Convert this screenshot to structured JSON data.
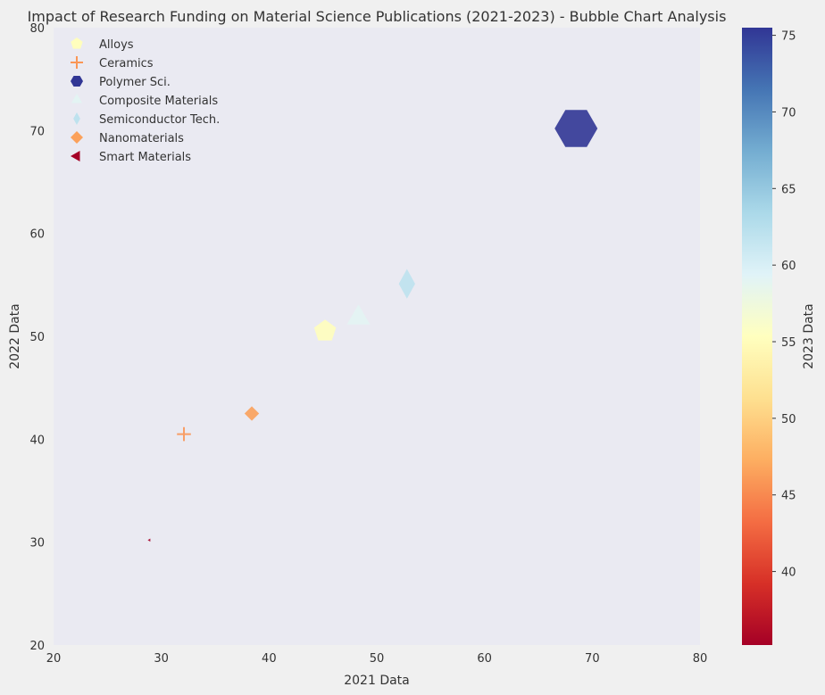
{
  "chart_data": {
    "type": "scatter",
    "title": "Impact of Research Funding on Material Science Publications (2021-2023) - Bubble Chart Analysis",
    "xlabel": "2021 Data",
    "ylabel": "2022 Data",
    "colorbar_label": "2023 Data",
    "xlim": [
      20,
      80
    ],
    "ylim": [
      20,
      80
    ],
    "x_ticks": [
      20,
      30,
      40,
      50,
      60,
      70,
      80
    ],
    "y_ticks": [
      20,
      30,
      40,
      50,
      60,
      70,
      80
    ],
    "colorbar_range": [
      35.2,
      75.5
    ],
    "colorbar_ticks": [
      40,
      45,
      50,
      55,
      60,
      65,
      70,
      75
    ],
    "colormap": "RdYlBu",
    "grid": false,
    "legend_position": "top-left",
    "series": [
      {
        "name": "Alloys",
        "marker": "pentagon",
        "x": 45.2,
        "y": 50.5,
        "value": 55.2
      },
      {
        "name": "Ceramics",
        "marker": "plus",
        "x": 32.1,
        "y": 40.5,
        "value": 45.8
      },
      {
        "name": "Polymer Sci.",
        "marker": "hexagon",
        "x": 68.5,
        "y": 70.2,
        "value": 75.5
      },
      {
        "name": "Composite Materials",
        "marker": "triangle-up",
        "x": 48.3,
        "y": 51.8,
        "value": 59.0
      },
      {
        "name": "Semiconductor Tech.",
        "marker": "thin-diamond",
        "x": 52.8,
        "y": 55.1,
        "value": 62.0
      },
      {
        "name": "Nanomaterials",
        "marker": "diamond",
        "x": 38.4,
        "y": 42.5,
        "value": 46.5
      },
      {
        "name": "Smart Materials",
        "marker": "triangle-left",
        "x": 28.9,
        "y": 30.2,
        "value": 35.2
      }
    ]
  }
}
